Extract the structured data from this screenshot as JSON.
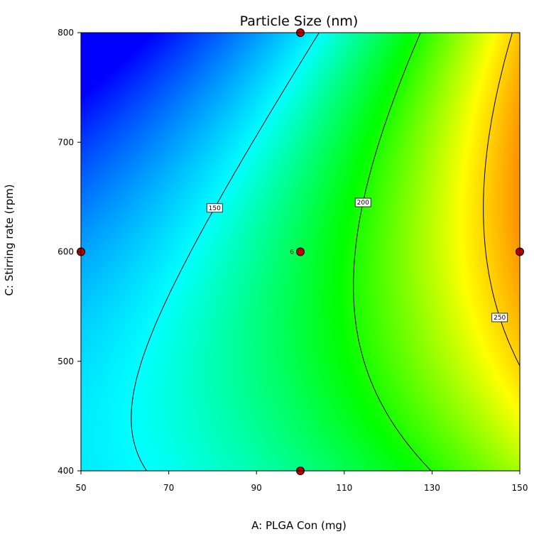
{
  "chart_data": {
    "type": "heatmap",
    "subtype": "contour",
    "title": "Particle Size (nm)",
    "xlabel": "A: PLGA Con (mg)",
    "ylabel": "C: Stirring rate (rpm)",
    "xlim": [
      50,
      150
    ],
    "ylim": [
      400,
      800
    ],
    "xticks": [
      "50",
      "70",
      "90",
      "110",
      "130",
      "150"
    ],
    "yticks": [
      "400",
      "500",
      "600",
      "700",
      "800"
    ],
    "grid": false,
    "colormap": [
      "#0000ff",
      "#00ffff",
      "#00ff00",
      "#ffff00",
      "#ff0000"
    ],
    "contours": [
      {
        "level": 150,
        "label": "150"
      },
      {
        "level": 200,
        "label": "200"
      },
      {
        "level": 250,
        "label": "250"
      }
    ],
    "design_points": [
      {
        "x": 100,
        "y": 800,
        "label": ""
      },
      {
        "x": 50,
        "y": 600,
        "label": ""
      },
      {
        "x": 100,
        "y": 600,
        "label": "6"
      },
      {
        "x": 150,
        "y": 600,
        "label": ""
      },
      {
        "x": 100,
        "y": 400,
        "label": ""
      }
    ],
    "point_color": "#c00000"
  }
}
